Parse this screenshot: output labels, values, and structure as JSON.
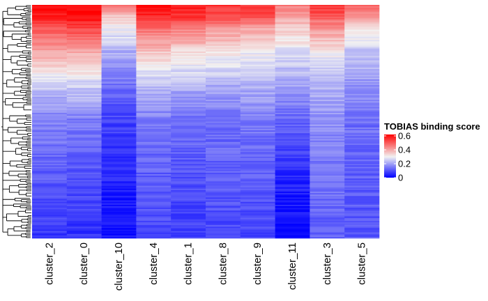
{
  "chart_data": {
    "type": "heatmap",
    "columns": [
      "cluster_2",
      "cluster_0",
      "cluster_10",
      "cluster_4",
      "cluster_1",
      "cluster_8",
      "cluster_9",
      "cluster_11",
      "cluster_3",
      "cluster_5"
    ],
    "row_count": 160,
    "row_profile": {
      "positions": [
        0,
        0.05,
        0.1,
        0.2,
        0.35,
        0.5,
        0.7,
        0.85,
        1.0
      ],
      "column_scores": [
        [
          0.6,
          0.58,
          0.5,
          0.4,
          0.25,
          0.16,
          0.12,
          0.09,
          0.07
        ],
        [
          0.62,
          0.6,
          0.52,
          0.4,
          0.25,
          0.15,
          0.11,
          0.08,
          0.06
        ],
        [
          0.45,
          0.35,
          0.3,
          0.22,
          0.14,
          0.08,
          0.05,
          0.03,
          0.02
        ],
        [
          0.6,
          0.57,
          0.48,
          0.36,
          0.23,
          0.15,
          0.12,
          0.1,
          0.09
        ],
        [
          0.58,
          0.55,
          0.45,
          0.33,
          0.22,
          0.14,
          0.11,
          0.09,
          0.08
        ],
        [
          0.55,
          0.52,
          0.42,
          0.32,
          0.21,
          0.14,
          0.12,
          0.1,
          0.09
        ],
        [
          0.55,
          0.52,
          0.4,
          0.3,
          0.22,
          0.15,
          0.12,
          0.1,
          0.08
        ],
        [
          0.45,
          0.4,
          0.35,
          0.28,
          0.2,
          0.12,
          0.06,
          0.03,
          0.02
        ],
        [
          0.55,
          0.5,
          0.42,
          0.3,
          0.22,
          0.18,
          0.15,
          0.13,
          0.12
        ],
        [
          0.5,
          0.4,
          0.32,
          0.25,
          0.18,
          0.14,
          0.12,
          0.11,
          0.1
        ]
      ]
    },
    "color_scale": {
      "title": "TOBIAS binding score",
      "min": 0,
      "max": 0.62,
      "stops": [
        {
          "value": 0,
          "color": "#0000ff"
        },
        {
          "value": 0.3,
          "color": "#f2f2f2"
        },
        {
          "value": 0.62,
          "color": "#ff0000"
        }
      ],
      "ticks": [
        0,
        0.2,
        0.4,
        0.6
      ],
      "tick_labels": [
        "0",
        "0.2",
        "0.4",
        "0.6"
      ]
    },
    "dendrogram": "row",
    "legend_position": "right"
  }
}
